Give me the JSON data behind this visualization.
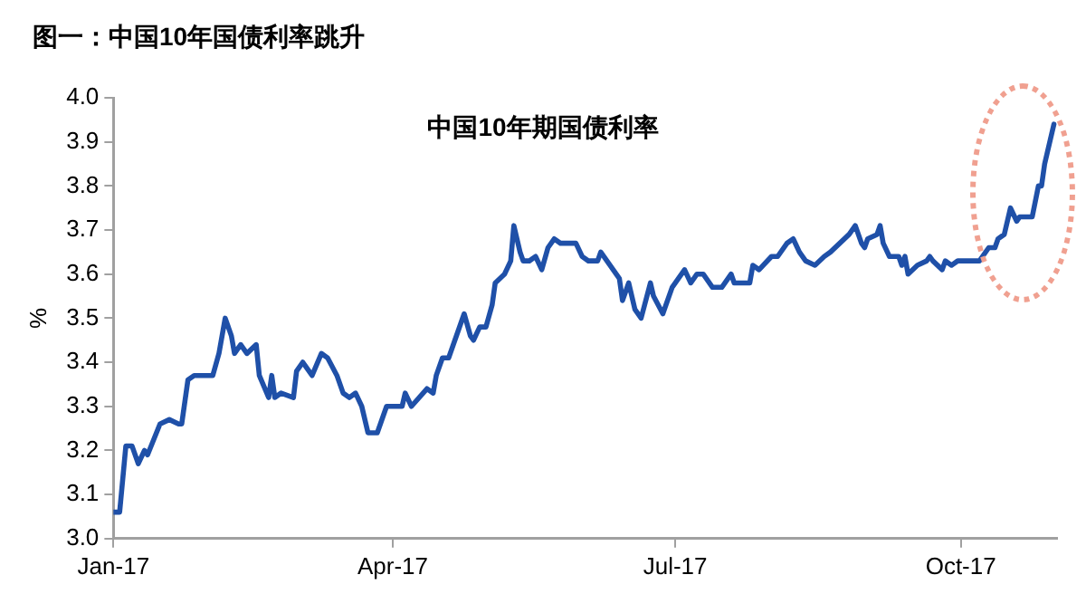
{
  "chart_data": {
    "type": "line",
    "title": "图一：中国10年国债利率跳升",
    "subtitle": "中国10年期国债利率",
    "ylabel": "%",
    "x": [
      "2017-01-01",
      "2017-01-03",
      "2017-01-05",
      "2017-01-07",
      "2017-01-09",
      "2017-01-11",
      "2017-01-12",
      "2017-01-16",
      "2017-01-19",
      "2017-01-22",
      "2017-01-23",
      "2017-01-25",
      "2017-01-27",
      "2017-02-02",
      "2017-02-04",
      "2017-02-06",
      "2017-02-08",
      "2017-02-09",
      "2017-02-11",
      "2017-02-13",
      "2017-02-16",
      "2017-02-17",
      "2017-02-20",
      "2017-02-21",
      "2017-02-22",
      "2017-02-24",
      "2017-02-28",
      "2017-03-01",
      "2017-03-03",
      "2017-03-06",
      "2017-03-09",
      "2017-03-11",
      "2017-03-14",
      "2017-03-16",
      "2017-03-18",
      "2017-03-20",
      "2017-03-22",
      "2017-03-24",
      "2017-03-27",
      "2017-03-30",
      "2017-04-04",
      "2017-04-05",
      "2017-04-07",
      "2017-04-12",
      "2017-04-14",
      "2017-04-15",
      "2017-04-17",
      "2017-04-19",
      "2017-04-22",
      "2017-04-24",
      "2017-04-26",
      "2017-04-27",
      "2017-04-29",
      "2017-05-01",
      "2017-05-03",
      "2017-05-04",
      "2017-05-07",
      "2017-05-09",
      "2017-05-10",
      "2017-05-12",
      "2017-05-13",
      "2017-05-15",
      "2017-05-17",
      "2017-05-19",
      "2017-05-21",
      "2017-05-23",
      "2017-05-25",
      "2017-05-30",
      "2017-06-01",
      "2017-06-03",
      "2017-06-06",
      "2017-06-07",
      "2017-06-09",
      "2017-06-11",
      "2017-06-13",
      "2017-06-14",
      "2017-06-16",
      "2017-06-18",
      "2017-06-20",
      "2017-06-23",
      "2017-06-24",
      "2017-06-27",
      "2017-06-30",
      "2017-07-04",
      "2017-07-06",
      "2017-07-08",
      "2017-07-10",
      "2017-07-13",
      "2017-07-14",
      "2017-07-16",
      "2017-07-19",
      "2017-07-20",
      "2017-07-22",
      "2017-07-25",
      "2017-07-26",
      "2017-07-28",
      "2017-08-01",
      "2017-08-03",
      "2017-08-06",
      "2017-08-08",
      "2017-08-10",
      "2017-08-12",
      "2017-08-15",
      "2017-08-18",
      "2017-08-20",
      "2017-08-23",
      "2017-08-26",
      "2017-08-28",
      "2017-08-30",
      "2017-08-31",
      "2017-09-01",
      "2017-09-04",
      "2017-09-05",
      "2017-09-06",
      "2017-09-08",
      "2017-09-11",
      "2017-09-12",
      "2017-09-13",
      "2017-09-14",
      "2017-09-17",
      "2017-09-20",
      "2017-09-21",
      "2017-09-22",
      "2017-09-25",
      "2017-09-26",
      "2017-09-28",
      "2017-09-30",
      "2017-10-04",
      "2017-10-07",
      "2017-10-10",
      "2017-10-12",
      "2017-10-13",
      "2017-10-15",
      "2017-10-17",
      "2017-10-19",
      "2017-10-20",
      "2017-10-24",
      "2017-10-26",
      "2017-10-27",
      "2017-10-28",
      "2017-10-31"
    ],
    "series": [
      {
        "color": "#1f50a8",
        "values": [
          3.06,
          3.06,
          3.21,
          3.21,
          3.17,
          3.2,
          3.19,
          3.26,
          3.27,
          3.26,
          3.26,
          3.36,
          3.37,
          3.37,
          3.42,
          3.5,
          3.46,
          3.42,
          3.44,
          3.42,
          3.44,
          3.37,
          3.32,
          3.37,
          3.32,
          3.33,
          3.32,
          3.38,
          3.4,
          3.37,
          3.42,
          3.41,
          3.37,
          3.33,
          3.32,
          3.33,
          3.3,
          3.24,
          3.24,
          3.3,
          3.3,
          3.33,
          3.3,
          3.34,
          3.33,
          3.37,
          3.41,
          3.41,
          3.47,
          3.51,
          3.46,
          3.45,
          3.48,
          3.48,
          3.53,
          3.58,
          3.6,
          3.63,
          3.71,
          3.65,
          3.63,
          3.63,
          3.64,
          3.61,
          3.66,
          3.68,
          3.67,
          3.67,
          3.64,
          3.63,
          3.63,
          3.65,
          3.63,
          3.61,
          3.59,
          3.54,
          3.58,
          3.52,
          3.5,
          3.58,
          3.55,
          3.51,
          3.57,
          3.61,
          3.58,
          3.6,
          3.6,
          3.57,
          3.57,
          3.57,
          3.6,
          3.58,
          3.58,
          3.58,
          3.62,
          3.61,
          3.64,
          3.64,
          3.67,
          3.68,
          3.65,
          3.63,
          3.62,
          3.64,
          3.65,
          3.67,
          3.69,
          3.71,
          3.67,
          3.66,
          3.68,
          3.69,
          3.71,
          3.67,
          3.64,
          3.64,
          3.62,
          3.64,
          3.6,
          3.62,
          3.63,
          3.64,
          3.63,
          3.61,
          3.63,
          3.62,
          3.63,
          3.63,
          3.63,
          3.66,
          3.66,
          3.68,
          3.69,
          3.75,
          3.72,
          3.73,
          3.73,
          3.8,
          3.8,
          3.85,
          3.94
        ]
      }
    ],
    "xlim": [
      "2017-01-01",
      "2017-11-01"
    ],
    "xticks": [
      {
        "value": "2017-01-01",
        "label": "Jan-17"
      },
      {
        "value": "2017-04-01",
        "label": "Apr-17"
      },
      {
        "value": "2017-07-01",
        "label": "Jul-17"
      },
      {
        "value": "2017-10-01",
        "label": "Oct-17"
      }
    ],
    "ylim": [
      3.0,
      4.0
    ],
    "yticks": [
      {
        "value": 3.0,
        "label": "3.0"
      },
      {
        "value": 3.1,
        "label": "3.1"
      },
      {
        "value": 3.2,
        "label": "3.2"
      },
      {
        "value": 3.3,
        "label": "3.3"
      },
      {
        "value": 3.4,
        "label": "3.4"
      },
      {
        "value": 3.5,
        "label": "3.5"
      },
      {
        "value": 3.6,
        "label": "3.6"
      },
      {
        "value": 3.7,
        "label": "3.7"
      },
      {
        "value": 3.8,
        "label": "3.8"
      },
      {
        "value": 3.9,
        "label": "3.9"
      },
      {
        "value": 4.0,
        "label": "4.0"
      }
    ],
    "grid": false,
    "legend": false,
    "marker": "none",
    "line_style": "solid"
  }
}
